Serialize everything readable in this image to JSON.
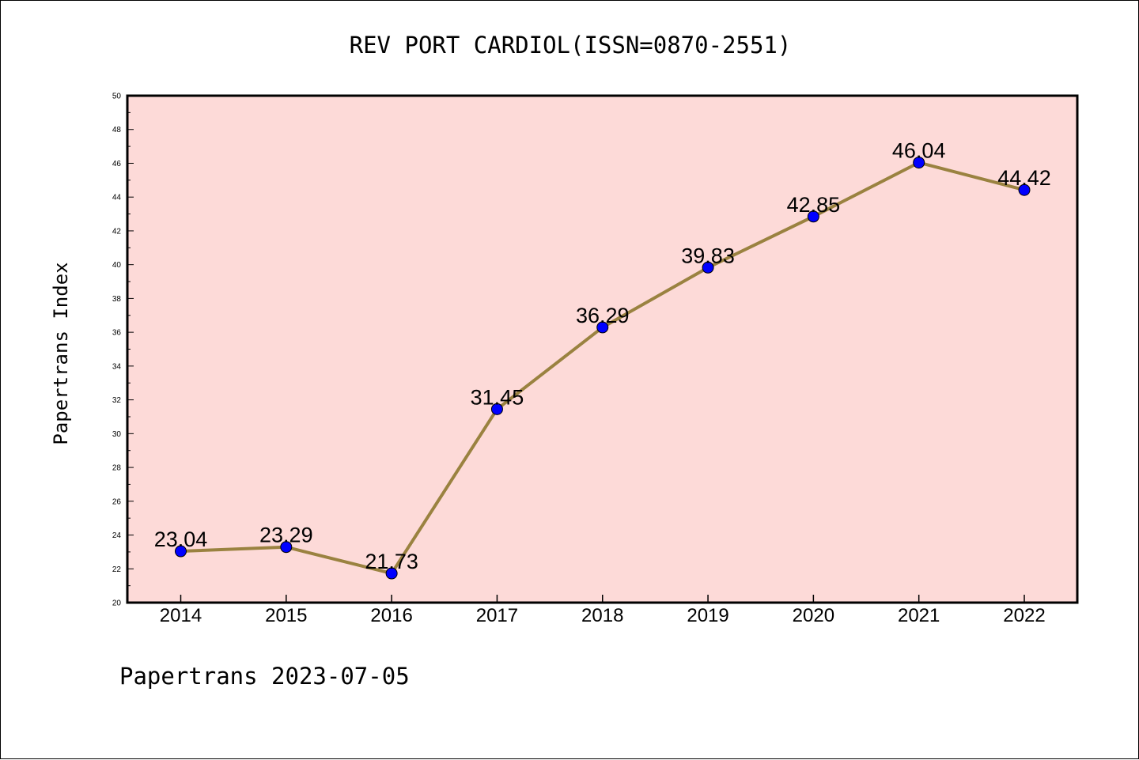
{
  "chart_data": {
    "type": "line",
    "title": "REV PORT CARDIOL(ISSN=0870-2551)",
    "xlabel": "",
    "ylabel": "Papertrans Index",
    "categories": [
      "2014",
      "2015",
      "2016",
      "2017",
      "2018",
      "2019",
      "2020",
      "2021",
      "2022"
    ],
    "series": [
      {
        "values": [
          23.04,
          23.29,
          21.73,
          31.45,
          36.29,
          39.83,
          42.85,
          46.04,
          44.42
        ],
        "data_labels": [
          "23.04",
          "23.29",
          "21.73",
          "31.45",
          "36.29",
          "39.83",
          "42.85",
          "46.04",
          "44.42"
        ]
      }
    ],
    "ylim": [
      20,
      50
    ],
    "y_ticks": [
      20,
      22,
      24,
      26,
      28,
      30,
      32,
      34,
      36,
      38,
      40,
      42,
      44,
      46,
      48,
      50
    ],
    "grid": false,
    "colors": {
      "plot_background": "#fddad8",
      "line": "#9a8240",
      "marker": "#0000ff"
    }
  },
  "footer": "Papertrans 2023-07-05"
}
